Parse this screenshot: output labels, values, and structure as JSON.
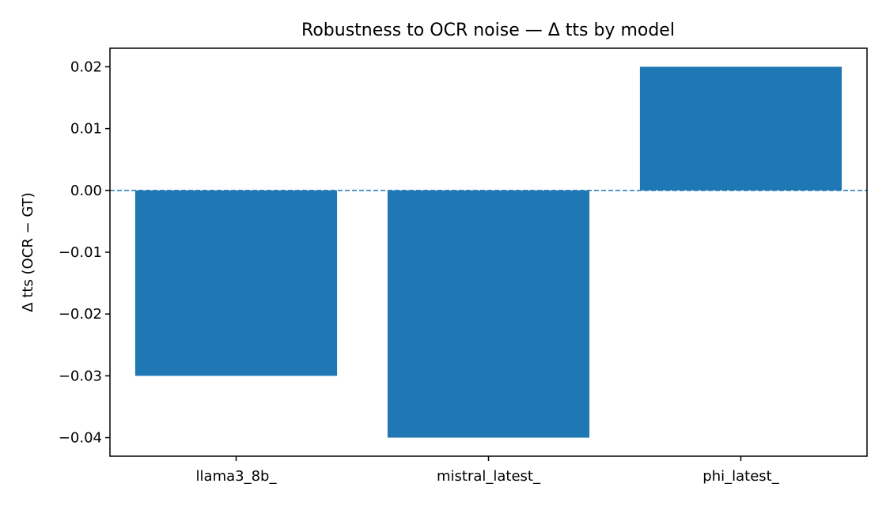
{
  "chart_data": {
    "type": "bar",
    "title": "Robustness to OCR noise — Δ tts by model",
    "xlabel": "",
    "ylabel": "Δ tts (OCR − GT)",
    "categories": [
      "llama3_8b_",
      "mistral_latest_",
      "phi_latest_"
    ],
    "values": [
      -0.03,
      -0.04,
      0.02
    ],
    "ylim": [
      -0.043,
      0.023
    ],
    "yticks": [
      0.02,
      0.01,
      0.0,
      -0.01,
      -0.02,
      -0.03,
      -0.04
    ],
    "ytick_labels": [
      "0.02",
      "0.01",
      "0.00",
      "−0.01",
      "−0.02",
      "−0.03",
      "−0.04"
    ],
    "bar_color": "#1f77b4",
    "reference_line": {
      "value": 0,
      "style": "dashed",
      "color": "#1f77b4"
    },
    "grid": false,
    "legend": "none"
  }
}
